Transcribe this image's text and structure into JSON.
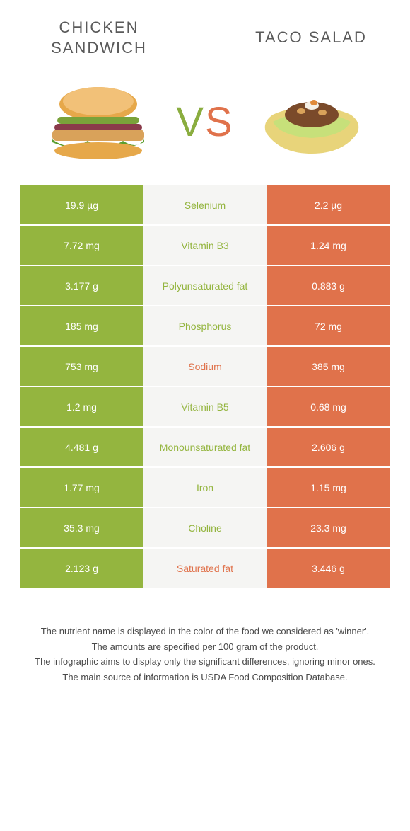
{
  "titles": {
    "left": "Chicken sandwich",
    "right": "Taco salad",
    "vs_v": "V",
    "vs_s": "S"
  },
  "colors": {
    "left": "#94b53f",
    "right": "#e0724b",
    "mid_bg": "#f5f5f3",
    "text_white": "#ffffff"
  },
  "rows": [
    {
      "left": "19.9 µg",
      "label": "Selenium",
      "right": "2.2 µg",
      "winner": "left"
    },
    {
      "left": "7.72 mg",
      "label": "Vitamin B3",
      "right": "1.24 mg",
      "winner": "left"
    },
    {
      "left": "3.177 g",
      "label": "Polyunsaturated fat",
      "right": "0.883 g",
      "winner": "left"
    },
    {
      "left": "185 mg",
      "label": "Phosphorus",
      "right": "72 mg",
      "winner": "left"
    },
    {
      "left": "753 mg",
      "label": "Sodium",
      "right": "385 mg",
      "winner": "right"
    },
    {
      "left": "1.2 mg",
      "label": "Vitamin B5",
      "right": "0.68 mg",
      "winner": "left"
    },
    {
      "left": "4.481 g",
      "label": "Monounsaturated fat",
      "right": "2.606 g",
      "winner": "left"
    },
    {
      "left": "1.77 mg",
      "label": "Iron",
      "right": "1.15 mg",
      "winner": "left"
    },
    {
      "left": "35.3 mg",
      "label": "Choline",
      "right": "23.3 mg",
      "winner": "left"
    },
    {
      "left": "2.123 g",
      "label": "Saturated fat",
      "right": "3.446 g",
      "winner": "right"
    }
  ],
  "footer": [
    "The nutrient name is displayed in the color of the food we considered as 'winner'.",
    "The amounts are specified per 100 gram of the product.",
    "The infographic aims to display only the significant differences, ignoring minor ones.",
    "The main source of information is USDA Food Composition Database."
  ]
}
